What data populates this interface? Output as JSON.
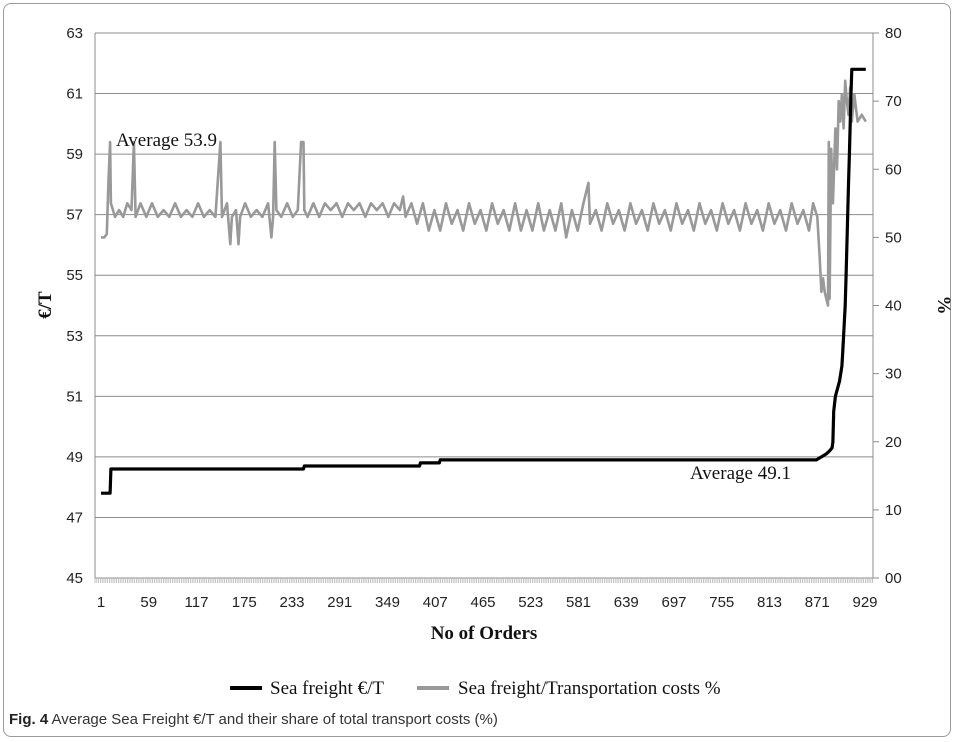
{
  "figure": {
    "label": "Fig. 4",
    "caption": "Average Sea Freight €/T and their share of total transport costs (%)"
  },
  "chart_data": {
    "type": "line",
    "xlabel": "No of Orders",
    "ylabel": "€/T",
    "y2label": "%",
    "x_ticks": [
      1,
      59,
      117,
      175,
      233,
      291,
      349,
      407,
      465,
      523,
      581,
      639,
      697,
      755,
      813,
      871,
      929
    ],
    "ylim": [
      45,
      63
    ],
    "y_ticks": [
      45,
      47,
      49,
      51,
      53,
      55,
      57,
      59,
      61,
      63
    ],
    "y2lim": [
      0,
      80
    ],
    "y2_ticks": [
      "00",
      "10",
      "20",
      "30",
      "40",
      "50",
      "60",
      "70",
      "80"
    ],
    "grid": true,
    "legend_position": "bottom",
    "annotations": [
      {
        "text": "Average 53.9",
        "x": 60,
        "y": 59.5
      },
      {
        "text": "Average 49.1",
        "x": 795,
        "y": 48.4
      }
    ],
    "series": [
      {
        "name": "Sea freight €/T",
        "axis": "left",
        "color": "#000000",
        "points": [
          [
            1,
            47.8
          ],
          [
            12,
            47.8
          ],
          [
            13,
            48.6
          ],
          [
            247,
            48.6
          ],
          [
            248,
            48.7
          ],
          [
            388,
            48.7
          ],
          [
            389,
            48.8
          ],
          [
            412,
            48.8
          ],
          [
            413,
            48.9
          ],
          [
            870,
            48.9
          ],
          [
            876,
            49.0
          ],
          [
            882,
            49.1
          ],
          [
            886,
            49.2
          ],
          [
            889,
            49.3
          ],
          [
            890,
            49.5
          ],
          [
            891,
            50.5
          ],
          [
            893,
            51.0
          ],
          [
            898,
            51.5
          ],
          [
            901,
            52.0
          ],
          [
            902,
            52.5
          ],
          [
            903,
            53.0
          ],
          [
            904,
            53.5
          ],
          [
            905,
            54.0
          ],
          [
            906,
            55.0
          ],
          [
            907,
            56.0
          ],
          [
            908,
            57.0
          ],
          [
            909,
            58.0
          ],
          [
            910,
            59.0
          ],
          [
            911,
            60.0
          ],
          [
            912,
            61.0
          ],
          [
            913,
            61.8
          ],
          [
            930,
            61.8
          ]
        ]
      },
      {
        "name": "Sea freight/Transportation costs %",
        "axis": "right",
        "color": "#999999",
        "points": [
          [
            1,
            50
          ],
          [
            5,
            50
          ],
          [
            8,
            50.5
          ],
          [
            10,
            58
          ],
          [
            12,
            64
          ],
          [
            13,
            55
          ],
          [
            18,
            53
          ],
          [
            23,
            54
          ],
          [
            28,
            53
          ],
          [
            33,
            55
          ],
          [
            38,
            54
          ],
          [
            41,
            64
          ],
          [
            43,
            53
          ],
          [
            49,
            55
          ],
          [
            56,
            53
          ],
          [
            63,
            55
          ],
          [
            70,
            53
          ],
          [
            77,
            54
          ],
          [
            84,
            53
          ],
          [
            91,
            55
          ],
          [
            98,
            53
          ],
          [
            105,
            54
          ],
          [
            112,
            53
          ],
          [
            119,
            55
          ],
          [
            126,
            53
          ],
          [
            133,
            54
          ],
          [
            140,
            53
          ],
          [
            146,
            64
          ],
          [
            148,
            53
          ],
          [
            154,
            55
          ],
          [
            158,
            49
          ],
          [
            160,
            53
          ],
          [
            165,
            54
          ],
          [
            168,
            49
          ],
          [
            170,
            53
          ],
          [
            176,
            55
          ],
          [
            183,
            53
          ],
          [
            190,
            54
          ],
          [
            197,
            53
          ],
          [
            204,
            55
          ],
          [
            208,
            50
          ],
          [
            210,
            53
          ],
          [
            212,
            64
          ],
          [
            214,
            54
          ],
          [
            220,
            53
          ],
          [
            227,
            55
          ],
          [
            234,
            53
          ],
          [
            240,
            54
          ],
          [
            244,
            64
          ],
          [
            246,
            64
          ],
          [
            247,
            64
          ],
          [
            248,
            54
          ],
          [
            252,
            53
          ],
          [
            259,
            55
          ],
          [
            266,
            53
          ],
          [
            273,
            55
          ],
          [
            280,
            54
          ],
          [
            287,
            55
          ],
          [
            294,
            53
          ],
          [
            301,
            55
          ],
          [
            308,
            54
          ],
          [
            315,
            55
          ],
          [
            322,
            53
          ],
          [
            329,
            55
          ],
          [
            336,
            54
          ],
          [
            343,
            55
          ],
          [
            350,
            53
          ],
          [
            357,
            55
          ],
          [
            364,
            54
          ],
          [
            368,
            56
          ],
          [
            371,
            53
          ],
          [
            378,
            55
          ],
          [
            385,
            52
          ],
          [
            392,
            55
          ],
          [
            399,
            51
          ],
          [
            406,
            54
          ],
          [
            413,
            51
          ],
          [
            420,
            55
          ],
          [
            427,
            52
          ],
          [
            434,
            54
          ],
          [
            441,
            51
          ],
          [
            448,
            55
          ],
          [
            455,
            52
          ],
          [
            462,
            54
          ],
          [
            469,
            51
          ],
          [
            476,
            55
          ],
          [
            483,
            52
          ],
          [
            490,
            54
          ],
          [
            497,
            51
          ],
          [
            504,
            55
          ],
          [
            511,
            51
          ],
          [
            518,
            54
          ],
          [
            525,
            51
          ],
          [
            532,
            55
          ],
          [
            539,
            51
          ],
          [
            546,
            54
          ],
          [
            553,
            51
          ],
          [
            560,
            55
          ],
          [
            566,
            50
          ],
          [
            573,
            54
          ],
          [
            580,
            51
          ],
          [
            587,
            55
          ],
          [
            593,
            58
          ],
          [
            595,
            52
          ],
          [
            602,
            54
          ],
          [
            609,
            51
          ],
          [
            616,
            55
          ],
          [
            623,
            52
          ],
          [
            630,
            54
          ],
          [
            637,
            51
          ],
          [
            644,
            55
          ],
          [
            651,
            52
          ],
          [
            658,
            54
          ],
          [
            665,
            51
          ],
          [
            672,
            55
          ],
          [
            679,
            52
          ],
          [
            686,
            54
          ],
          [
            693,
            51
          ],
          [
            700,
            55
          ],
          [
            707,
            52
          ],
          [
            714,
            54
          ],
          [
            721,
            51
          ],
          [
            728,
            55
          ],
          [
            735,
            52
          ],
          [
            742,
            54
          ],
          [
            749,
            51
          ],
          [
            756,
            55
          ],
          [
            763,
            52
          ],
          [
            770,
            54
          ],
          [
            777,
            51
          ],
          [
            784,
            55
          ],
          [
            791,
            52
          ],
          [
            798,
            54
          ],
          [
            805,
            51
          ],
          [
            812,
            55
          ],
          [
            819,
            52
          ],
          [
            826,
            54
          ],
          [
            833,
            51
          ],
          [
            840,
            55
          ],
          [
            847,
            52
          ],
          [
            854,
            54
          ],
          [
            861,
            51
          ],
          [
            866,
            55
          ],
          [
            871,
            53
          ],
          [
            874,
            47
          ],
          [
            876,
            42
          ],
          [
            878,
            44
          ],
          [
            880,
            42
          ],
          [
            882,
            41
          ],
          [
            884,
            40
          ],
          [
            885,
            64
          ],
          [
            886,
            41
          ],
          [
            888,
            63
          ],
          [
            890,
            55
          ],
          [
            893,
            66
          ],
          [
            895,
            60
          ],
          [
            897,
            70
          ],
          [
            899,
            67
          ],
          [
            901,
            71
          ],
          [
            903,
            66
          ],
          [
            905,
            73
          ],
          [
            907,
            70
          ],
          [
            909,
            68
          ],
          [
            911,
            72
          ],
          [
            913,
            67
          ],
          [
            916,
            71
          ],
          [
            920,
            67
          ],
          [
            925,
            68
          ],
          [
            930,
            67
          ]
        ]
      }
    ]
  },
  "legend": {
    "items": [
      {
        "label": "Sea freight €/T",
        "color": "#000000"
      },
      {
        "label": "Sea freight/Transportation costs %",
        "color": "#999999"
      }
    ]
  }
}
